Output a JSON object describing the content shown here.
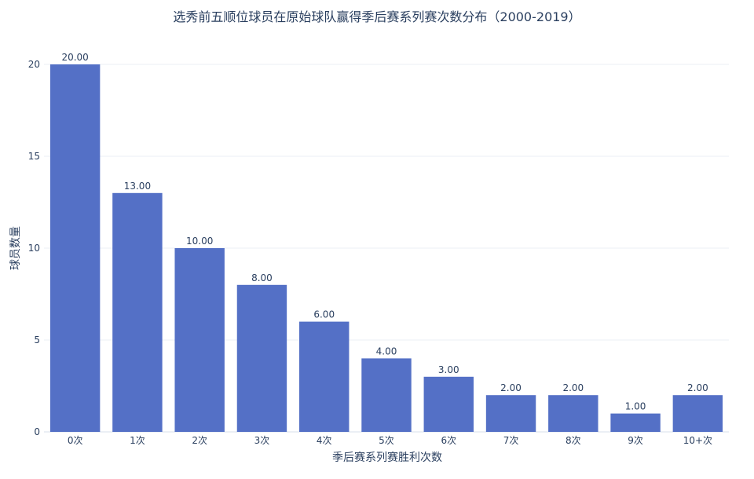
{
  "chart_data": {
    "type": "bar",
    "title": "选秀前五顺位球员在原始球队赢得季后赛系列赛次数分布（2000-2019）",
    "xlabel": "季后赛系列赛胜利次数",
    "ylabel": "球员数量",
    "categories": [
      "0次",
      "1次",
      "2次",
      "3次",
      "4次",
      "5次",
      "6次",
      "7次",
      "8次",
      "9次",
      "10+次"
    ],
    "values": [
      20,
      13,
      10,
      8,
      6,
      4,
      3,
      2,
      2,
      1,
      2
    ],
    "data_labels": [
      "20.00",
      "13.00",
      "10.00",
      "8.00",
      "6.00",
      "4.00",
      "3.00",
      "2.00",
      "2.00",
      "1.00",
      "2.00"
    ],
    "ylim": [
      0,
      20
    ],
    "yticks": [
      0,
      5,
      10,
      15,
      20
    ],
    "bar_color": "#5470c6",
    "grid": true,
    "legend": false
  }
}
